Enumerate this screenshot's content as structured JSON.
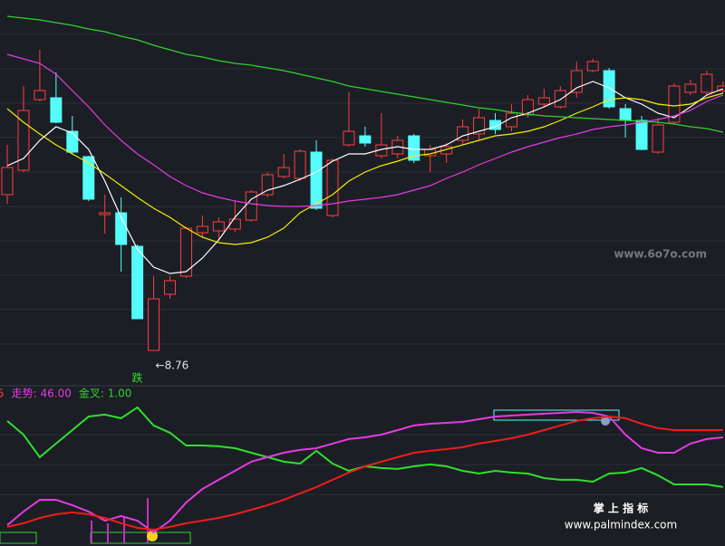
{
  "chart_data": [
    {
      "type": "candlestick",
      "categories": [
        null,
        null,
        null,
        null,
        null,
        null,
        null,
        null,
        null,
        null,
        null,
        null,
        null,
        null,
        null,
        null,
        null,
        null,
        null,
        null,
        null,
        null,
        null,
        null,
        null,
        null,
        null,
        null,
        null,
        null,
        null,
        null,
        null,
        null,
        null,
        null,
        null,
        null,
        null,
        null,
        null,
        null,
        null,
        null,
        null
      ],
      "open": [
        10.48,
        10.75,
        11.53,
        11.55,
        11.18,
        10.9,
        10.26,
        10.28,
        9.91,
        8.76,
        9.38,
        9.58,
        10.06,
        10.08,
        10.1,
        10.2,
        10.48,
        10.68,
        10.66,
        10.95,
        10.25,
        11.03,
        11.13,
        10.91,
        10.93,
        11.13,
        10.91,
        10.93,
        11.08,
        11.15,
        11.3,
        11.23,
        11.36,
        11.48,
        11.45,
        11.61,
        11.85,
        11.85,
        11.43,
        11.3,
        10.95,
        11.28,
        11.61,
        11.61,
        11.63
      ],
      "high": [
        11.03,
        11.68,
        12.08,
        11.83,
        11.35,
        10.91,
        10.48,
        10.45,
        9.93,
        9.58,
        9.58,
        10.13,
        10.25,
        10.23,
        10.41,
        10.53,
        10.73,
        10.93,
        10.98,
        11.08,
        10.88,
        11.61,
        11.23,
        11.38,
        11.13,
        11.15,
        11.03,
        11.05,
        11.31,
        11.43,
        11.38,
        11.48,
        11.58,
        11.65,
        11.68,
        11.95,
        11.98,
        11.88,
        11.48,
        11.35,
        11.33,
        11.71,
        11.75,
        11.85,
        11.73
      ],
      "low": [
        10.38,
        10.73,
        11.51,
        11.27,
        10.93,
        10.41,
        10.05,
        9.63,
        9.11,
        8.76,
        9.33,
        9.56,
        10.01,
        9.98,
        10.07,
        10.18,
        10.45,
        10.66,
        10.63,
        10.31,
        10.23,
        11.01,
        11.01,
        10.88,
        10.88,
        10.83,
        10.73,
        10.83,
        11.03,
        11.08,
        11.15,
        11.18,
        11.33,
        11.45,
        11.43,
        11.55,
        11.83,
        11.43,
        11.11,
        10.97,
        10.93,
        11.26,
        11.58,
        11.58,
        11.6
      ],
      "close": [
        10.78,
        11.41,
        11.63,
        11.28,
        10.95,
        10.43,
        10.28,
        9.93,
        9.11,
        9.33,
        9.53,
        10.11,
        10.13,
        10.18,
        10.21,
        10.51,
        10.7,
        10.78,
        10.96,
        10.33,
        10.86,
        11.18,
        11.05,
        11.03,
        11.08,
        10.86,
        10.98,
        11.01,
        11.23,
        11.33,
        11.2,
        11.38,
        11.53,
        11.55,
        11.63,
        11.85,
        11.95,
        11.45,
        11.3,
        10.98,
        11.25,
        11.68,
        11.7,
        11.81,
        11.68
      ],
      "up_color": "#ff3d3d",
      "down_color": "#54fcfc",
      "ylim": [
        8.38,
        12.63
      ],
      "series": [
        {
          "color": "#ffffff",
          "values": [
            10.8,
            10.88,
            11.08,
            11.23,
            11.16,
            10.98,
            10.63,
            10.23,
            9.88,
            9.68,
            9.61,
            9.63,
            9.78,
            9.98,
            10.23,
            10.43,
            10.53,
            10.58,
            10.65,
            10.73,
            10.85,
            10.93,
            10.93,
            10.98,
            11.01,
            10.98,
            10.98,
            11.03,
            11.13,
            11.18,
            11.23,
            11.33,
            11.38,
            11.45,
            11.53,
            11.66,
            11.73,
            11.66,
            11.55,
            11.48,
            11.38,
            11.33,
            11.45,
            11.58,
            11.65
          ]
        },
        {
          "color": "#f0f000",
          "values": [
            11.43,
            11.28,
            11.15,
            11.03,
            10.93,
            10.83,
            10.71,
            10.58,
            10.45,
            10.33,
            10.23,
            10.11,
            10.01,
            9.95,
            9.93,
            9.95,
            10.01,
            10.11,
            10.28,
            10.38,
            10.48,
            10.63,
            10.73,
            10.8,
            10.85,
            10.91,
            10.93,
            10.98,
            11.03,
            11.08,
            11.13,
            11.15,
            11.18,
            11.23,
            11.3,
            11.38,
            11.45,
            11.53,
            11.55,
            11.53,
            11.48,
            11.46,
            11.48,
            11.55,
            11.6
          ]
        },
        {
          "color": "#e23ce2",
          "values": [
            12.03,
            11.98,
            11.93,
            11.81,
            11.63,
            11.45,
            11.25,
            11.08,
            10.93,
            10.81,
            10.68,
            10.58,
            10.5,
            10.45,
            10.41,
            10.38,
            10.36,
            10.35,
            10.35,
            10.36,
            10.38,
            10.41,
            10.43,
            10.45,
            10.48,
            10.53,
            10.58,
            10.66,
            10.73,
            10.81,
            10.88,
            10.95,
            11.01,
            11.06,
            11.11,
            11.15,
            11.2,
            11.23,
            11.25,
            11.28,
            11.31,
            11.35,
            11.41,
            11.51,
            11.58
          ]
        },
        {
          "color": "#2ed32e",
          "values": [
            12.45,
            12.43,
            12.41,
            12.38,
            12.35,
            12.31,
            12.28,
            12.23,
            12.19,
            12.13,
            12.08,
            12.03,
            12.0,
            11.96,
            11.93,
            11.91,
            11.88,
            11.85,
            11.81,
            11.77,
            11.73,
            11.68,
            11.65,
            11.62,
            11.59,
            11.56,
            11.53,
            11.5,
            11.47,
            11.44,
            11.42,
            11.39,
            11.37,
            11.35,
            11.34,
            11.33,
            11.32,
            11.31,
            11.3,
            11.29,
            11.28,
            11.26,
            11.23,
            11.21,
            11.17
          ]
        }
      ],
      "annotations": {
        "low": "←8.76",
        "signal": "跌"
      },
      "watermark": "www.6o7o.com"
    },
    {
      "type": "line",
      "categories": [
        null,
        null,
        null,
        null,
        null,
        null,
        null,
        null,
        null,
        null,
        null,
        null,
        null,
        null,
        null,
        null,
        null,
        null,
        null,
        null,
        null,
        null,
        null,
        null,
        null,
        null,
        null,
        null,
        null,
        null,
        null,
        null,
        null,
        null,
        null,
        null,
        null,
        null,
        null,
        null,
        null,
        null,
        null,
        null,
        null
      ],
      "labels": [
        {
          "text": "5",
          "color": "#ff3d3d"
        },
        {
          "text": "走势: 46.00",
          "color": "#e23ce2"
        },
        {
          "text": "金叉: 1.00",
          "color": "#2ed32e"
        }
      ],
      "ylim": [
        0,
        108.1
      ],
      "series": [
        {
          "color": "#2ee02e",
          "values": [
            84.4,
            75,
            59.4,
            68.8,
            78.1,
            87.5,
            88.8,
            86.3,
            93.8,
            81.3,
            76.3,
            67.5,
            67.5,
            66.9,
            65.6,
            62.5,
            59.4,
            56.3,
            55,
            63.8,
            55,
            50,
            53.1,
            51.9,
            51.3,
            53.1,
            54.4,
            53.1,
            50,
            48.1,
            50,
            48.8,
            48.1,
            45,
            43.8,
            43.8,
            42.5,
            48.1,
            48.8,
            51.9,
            46.9,
            40.6,
            40.6,
            40.6,
            38.8
          ]
        },
        {
          "color": "#e23ce2",
          "values": [
            12.5,
            21.9,
            30,
            30,
            26.3,
            21.9,
            15.6,
            18.8,
            15.6,
            7.5,
            15.6,
            28.1,
            37.5,
            43.8,
            50,
            56.3,
            59.4,
            62.5,
            64.4,
            65.6,
            68.8,
            71.9,
            73.1,
            75,
            78.1,
            81.3,
            82.5,
            83.1,
            83.8,
            85.6,
            87.5,
            88.1,
            88.8,
            89.4,
            90,
            90.6,
            90,
            87.5,
            75,
            65.6,
            62.5,
            62.5,
            68.8,
            71.9,
            73.1
          ]
        },
        {
          "color": "#ee1c1c",
          "values": [
            11.3,
            13.8,
            17.5,
            20,
            21.3,
            20,
            17.5,
            13.8,
            10.6,
            9.4,
            11.3,
            13.8,
            15.6,
            17.5,
            20,
            23.1,
            26.3,
            30,
            34.4,
            38.8,
            43.8,
            48.8,
            53.1,
            56.3,
            59.4,
            62.5,
            63.8,
            65,
            66.3,
            68.8,
            70.6,
            72.5,
            75,
            78.1,
            81.3,
            84.4,
            86.3,
            87.5,
            86.3,
            82.5,
            79.4,
            78.1,
            78.1,
            78.1,
            78.1
          ]
        }
      ],
      "watermark": {
        "title": "掌 上 指 标",
        "url": "www.palmindex.com"
      }
    }
  ]
}
